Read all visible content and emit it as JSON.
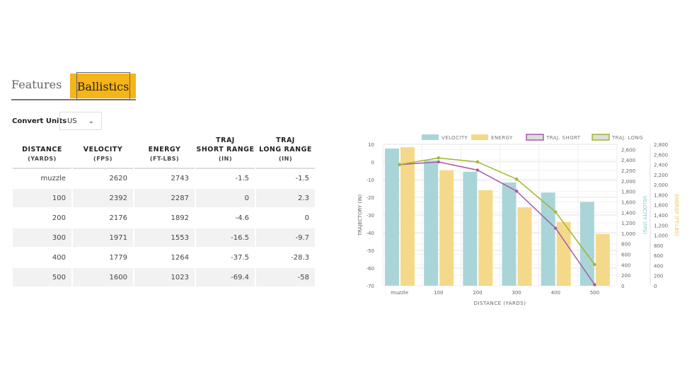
{
  "tabs": {
    "features": "Features",
    "ballistics": "Ballistics"
  },
  "convert": {
    "label": "Convert Units",
    "value": "US",
    "chevron": "⌄"
  },
  "table": {
    "headers": [
      [
        "",
        "DISTANCE",
        "(YARDS)"
      ],
      [
        "",
        "VELOCITY",
        "(FPS)"
      ],
      [
        "",
        "ENERGY",
        "(FT-LBS)"
      ],
      [
        "TRAJ",
        "SHORT RANGE",
        "(IN)"
      ],
      [
        "TRAJ",
        "LONG RANGE",
        "(IN)"
      ]
    ],
    "rows": [
      [
        "muzzle",
        "2620",
        "2743",
        "-1.5",
        "-1.5"
      ],
      [
        "100",
        "2392",
        "2287",
        "0",
        "2.3"
      ],
      [
        "200",
        "2176",
        "1892",
        "-4.6",
        "0"
      ],
      [
        "300",
        "1971",
        "1553",
        "-16.5",
        "-9.7"
      ],
      [
        "400",
        "1779",
        "1264",
        "-37.5",
        "-28.3"
      ],
      [
        "500",
        "1600",
        "1023",
        "-69.4",
        "-58"
      ]
    ]
  },
  "chart_data": {
    "type": "bar",
    "categories": [
      "muzzle",
      "100",
      "200",
      "300",
      "400",
      "500"
    ],
    "xlabel": "DISTANCE (YARDS)",
    "ylabel": "TRAJECTORY (IN)",
    "y2label": "VELOCITY (FPS)",
    "y3label": "ENERGY (FT-LBS)",
    "ylim": [
      -70,
      10
    ],
    "y2lim": [
      0,
      2700
    ],
    "y3lim": [
      0,
      2800
    ],
    "yticks": [
      10,
      0,
      -10,
      -20,
      -30,
      -40,
      -50,
      -60,
      -70
    ],
    "y2ticks": [
      "0",
      "200",
      "400",
      "600",
      "800",
      "1,000",
      "1,200",
      "1,400",
      "1,600",
      "1,800",
      "2,000",
      "2,200",
      "2,400",
      "2,600"
    ],
    "y3ticks": [
      "0",
      "200",
      "400",
      "600",
      "800",
      "1,000",
      "1,200",
      "1,400",
      "1,600",
      "1,800",
      "2,000",
      "2,200",
      "2,400",
      "2,600",
      "2,800"
    ],
    "legend_position": "top",
    "series": [
      {
        "name": "VELOCITY",
        "kind": "bar",
        "axis": "y2",
        "color": "#a9d5d8",
        "values": [
          2620,
          2392,
          2176,
          1971,
          1779,
          1600
        ]
      },
      {
        "name": "ENERGY",
        "kind": "bar",
        "axis": "y3",
        "color": "#f5d98a",
        "values": [
          2743,
          2287,
          1892,
          1553,
          1264,
          1023
        ]
      },
      {
        "name": "TRAJ. SHORT",
        "kind": "line",
        "axis": "y",
        "color": "#a65aa8",
        "values": [
          -1.5,
          0,
          -4.6,
          -16.5,
          -37.5,
          -69.4
        ]
      },
      {
        "name": "TRAJ. LONG",
        "kind": "line",
        "axis": "y",
        "color": "#a3b52a",
        "values": [
          -1.5,
          2.3,
          0,
          -9.7,
          -28.3,
          -58
        ]
      }
    ]
  }
}
